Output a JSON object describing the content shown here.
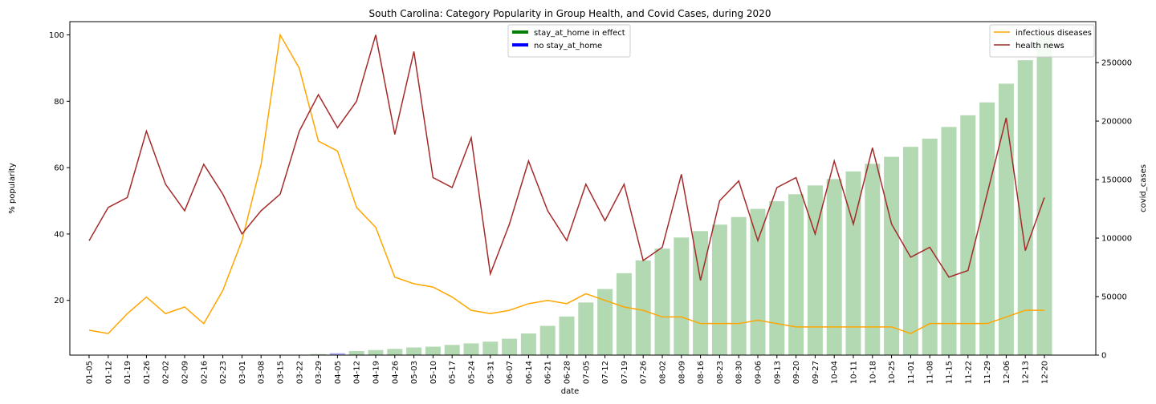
{
  "chart_data": {
    "type": "bar+line",
    "title": "South Carolina: Category Popularity in Group Health, and Covid Cases, during 2020",
    "xlabel": "date",
    "ylabel_left": "% popularity",
    "ylabel_right": "covid_cases",
    "ylim_left": [
      3.5,
      104
    ],
    "ylim_right": [
      0,
      285000
    ],
    "yticks_left": [
      20,
      40,
      60,
      80,
      100
    ],
    "yticks_right": [
      0,
      50000,
      100000,
      150000,
      200000,
      250000
    ],
    "grid": false,
    "categories": [
      "01-05",
      "01-12",
      "01-19",
      "01-26",
      "02-02",
      "02-09",
      "02-16",
      "02-23",
      "03-01",
      "03-08",
      "03-15",
      "03-22",
      "03-29",
      "04-05",
      "04-12",
      "04-19",
      "04-26",
      "05-03",
      "05-10",
      "05-17",
      "05-24",
      "05-31",
      "06-07",
      "06-14",
      "06-21",
      "06-28",
      "07-05",
      "07-12",
      "07-19",
      "07-26",
      "08-02",
      "08-09",
      "08-16",
      "08-23",
      "08-30",
      "09-06",
      "09-13",
      "09-20",
      "09-27",
      "10-04",
      "10-11",
      "10-18",
      "10-25",
      "11-01",
      "11-08",
      "11-15",
      "11-22",
      "11-29",
      "12-06",
      "12-13",
      "12-20"
    ],
    "series": [
      {
        "name": "infectious diseases",
        "kind": "line",
        "axis": "left",
        "color": "#ffa500",
        "values": [
          11,
          10,
          16,
          21,
          16,
          18,
          13,
          23,
          38,
          61,
          100,
          90,
          68,
          65,
          48,
          42,
          27,
          25,
          24,
          21,
          17,
          16,
          17,
          19,
          20,
          19,
          22,
          20,
          18,
          17,
          15,
          15,
          13,
          13,
          13,
          14,
          13,
          12,
          12,
          12,
          12,
          12,
          12,
          10,
          13,
          13,
          13,
          13,
          15,
          17,
          17
        ]
      },
      {
        "name": "health news",
        "kind": "line",
        "axis": "left",
        "color": "#a52a2a",
        "values": [
          38,
          48,
          51,
          71,
          55,
          47,
          61,
          52,
          40,
          47,
          52,
          71,
          82,
          72,
          80,
          100,
          70,
          95,
          57,
          54,
          69,
          28,
          43,
          62,
          47,
          38,
          55,
          44,
          55,
          32,
          36,
          58,
          26,
          50,
          56,
          38,
          54,
          57,
          40,
          62,
          43,
          66,
          43,
          33,
          36,
          27,
          29,
          52,
          75,
          35,
          51
        ]
      },
      {
        "name": "covid_cases",
        "kind": "bar",
        "axis": "right",
        "color": "#008000",
        "alpha": 0.3,
        "values": [
          0,
          0,
          0,
          0,
          0,
          0,
          0,
          0,
          0,
          0,
          0,
          0,
          800,
          1700,
          3400,
          4300,
          5300,
          6500,
          7200,
          8700,
          10000,
          11500,
          14000,
          18500,
          25000,
          33000,
          45000,
          56500,
          70000,
          81000,
          91000,
          100500,
          106000,
          111500,
          118000,
          125000,
          131500,
          137500,
          145000,
          150500,
          157000,
          163500,
          169500,
          178000,
          185000,
          195000,
          205000,
          216000,
          232000,
          252000,
          273000
        ]
      }
    ],
    "stay_at_home_weeks": [
      "04-05"
    ],
    "legend_left": {
      "placement": "top-center",
      "entries": [
        {
          "label": "stay_at_home in effect",
          "color": "#008000"
        },
        {
          "label": "no stay_at_home",
          "color": "#0000ff"
        }
      ]
    },
    "legend_right": {
      "placement": "top-right",
      "entries": [
        {
          "label": "infectious diseases",
          "color": "#ffa500"
        },
        {
          "label": "health news",
          "color": "#a52a2a"
        }
      ]
    }
  }
}
